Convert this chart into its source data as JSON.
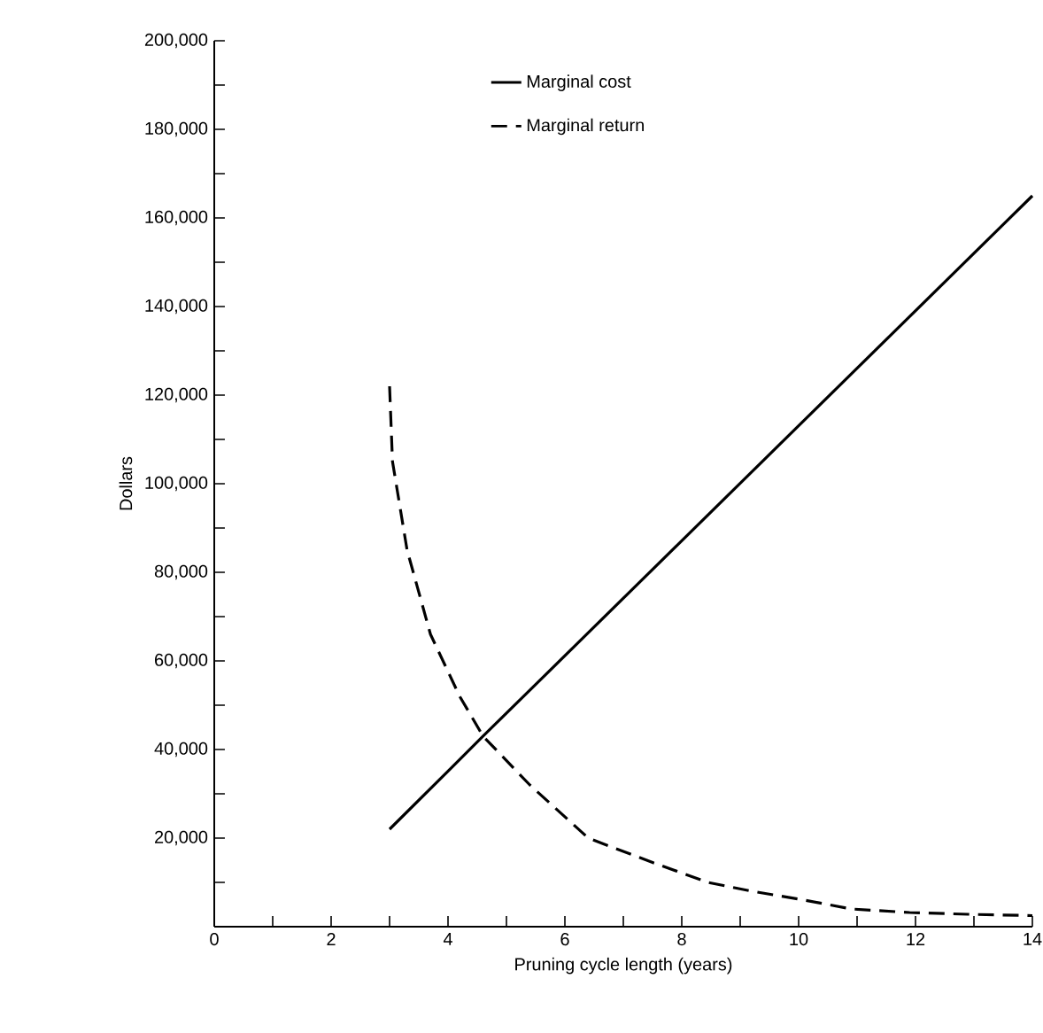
{
  "chart_data": {
    "type": "line",
    "xlabel": "Pruning cycle length (years)",
    "ylabel": "Dollars",
    "xlim": [
      0,
      14
    ],
    "ylim": [
      0,
      200000
    ],
    "xticks": [
      0,
      {
        "value": 1,
        "label": null
      },
      2,
      {
        "value": 3,
        "label": null
      },
      4,
      {
        "value": 5,
        "label": null
      },
      6,
      {
        "value": 7,
        "label": null
      },
      8,
      {
        "value": 9,
        "label": null
      },
      10,
      {
        "value": 11,
        "label": null
      },
      12,
      {
        "value": 13,
        "label": null
      },
      14
    ],
    "yticks": [
      {
        "value": 10000,
        "label": null
      },
      {
        "value": 20000,
        "label": "20,000"
      },
      {
        "value": 30000,
        "label": null
      },
      {
        "value": 40000,
        "label": "40,000"
      },
      {
        "value": 50000,
        "label": null
      },
      {
        "value": 60000,
        "label": "60,000"
      },
      {
        "value": 70000,
        "label": null
      },
      {
        "value": 80000,
        "label": "80,000"
      },
      {
        "value": 90000,
        "label": null
      },
      {
        "value": 100000,
        "label": "100,000"
      },
      {
        "value": 110000,
        "label": null
      },
      {
        "value": 120000,
        "label": "120,000"
      },
      {
        "value": 130000,
        "label": null
      },
      {
        "value": 140000,
        "label": "140,000"
      },
      {
        "value": 150000,
        "label": null
      },
      {
        "value": 160000,
        "label": "160,000"
      },
      {
        "value": 170000,
        "label": null
      },
      {
        "value": 180000,
        "label": "180,000"
      },
      {
        "value": 190000,
        "label": null
      },
      {
        "value": 200000,
        "label": "200,000"
      }
    ],
    "legend": "top",
    "marker": "none",
    "series": [
      {
        "name": "Marginal cost",
        "color": "#000000",
        "line_style": "solid",
        "x": [
          3,
          4.6,
          14
        ],
        "values": [
          22000,
          43000,
          165000
        ]
      },
      {
        "name": "Marginal return",
        "color": "#000000",
        "line_style": "dashed",
        "x": [
          3,
          3.05,
          3.3,
          3.7,
          4.2,
          4.6,
          5.4,
          6.4,
          7.5,
          8.45,
          9.2,
          10.1,
          10.9,
          11.9,
          12.9,
          14
        ],
        "values": [
          122000,
          105000,
          85000,
          66000,
          52000,
          43000,
          32000,
          20000,
          14500,
          10000,
          8000,
          6000,
          4000,
          3200,
          2800,
          2500
        ]
      }
    ]
  }
}
